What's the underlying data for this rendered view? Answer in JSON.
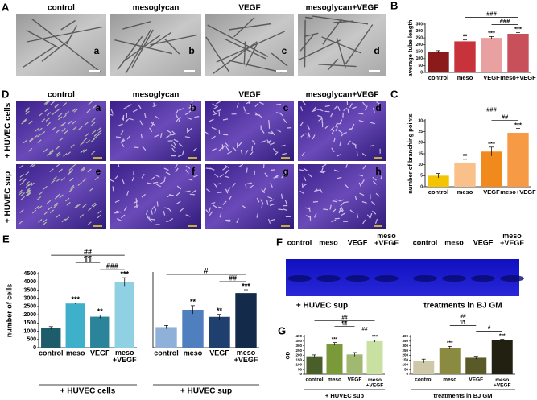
{
  "panels": {
    "A": {
      "label": "A",
      "columns": [
        "control",
        "mesoglycan",
        "VEGF",
        "mesoglycan+VEGF"
      ],
      "letters": [
        "a",
        "b",
        "c",
        "d"
      ]
    },
    "D": {
      "label": "D",
      "columns": [
        "control",
        "mesoglycan",
        "VEGF",
        "mesoglycan+VEGF"
      ],
      "rows": [
        "+ HUVEC cells",
        "+ HUVEC sup"
      ],
      "letters": [
        "a",
        "b",
        "c",
        "d",
        "e",
        "f",
        "g",
        "h"
      ]
    },
    "F": {
      "label": "F",
      "lanes": [
        "control",
        "meso",
        "VEGF",
        [
          "meso",
          "+VEGF"
        ],
        "control",
        "meso",
        "VEGF",
        [
          "meso",
          "+VEGF"
        ]
      ],
      "captions": [
        "+ HUVEC sup",
        "treatments in BJ GM"
      ]
    }
  },
  "chart_data": [
    {
      "type": "bar",
      "panel": "B",
      "ylabel": "average tube length",
      "categories": [
        "control",
        "meso",
        "VEGF",
        "meso+VEGF"
      ],
      "values": [
        150,
        225,
        250,
        280
      ],
      "errors": [
        8,
        10,
        10,
        8
      ],
      "colors": [
        "#8b1a1a",
        "#c8323a",
        "#e8a0a0",
        "#c8505a"
      ],
      "ylim": [
        0,
        350
      ],
      "yticks": [
        0,
        50,
        100,
        150,
        200,
        250,
        300,
        350
      ],
      "significance": [
        null,
        "**",
        "***",
        "***"
      ],
      "brackets": [
        {
          "between": [
            "meso",
            "meso+VEGF"
          ],
          "label": "###"
        },
        {
          "between": [
            "VEGF",
            "meso+VEGF"
          ],
          "label": "###"
        }
      ]
    },
    {
      "type": "bar",
      "panel": "C",
      "ylabel": "number of branching points",
      "categories": [
        "control",
        "meso",
        "VEGF",
        "meso+VEGF"
      ],
      "values": [
        5,
        11,
        16,
        24.5
      ],
      "errors": [
        1,
        1.5,
        2,
        2
      ],
      "colors": [
        "#f5c400",
        "#f9c08a",
        "#f08a1c",
        "#f79a45"
      ],
      "ylim": [
        0,
        30
      ],
      "yticks": [
        0,
        5,
        10,
        15,
        20,
        25,
        30
      ],
      "significance": [
        null,
        "**",
        "***",
        "***"
      ],
      "brackets": [
        {
          "between": [
            "meso",
            "meso+VEGF"
          ],
          "label": "###"
        },
        {
          "between": [
            "VEGF",
            "meso+VEGF"
          ],
          "label": "##"
        }
      ]
    },
    {
      "type": "bar",
      "panel": "E",
      "ylabel": "number of cells",
      "categories": [
        "control",
        "meso",
        "VEGF",
        [
          "meso",
          "+VEGF"
        ]
      ],
      "values": [
        1200,
        2680,
        1880,
        4000
      ],
      "errors": [
        80,
        40,
        100,
        250
      ],
      "colors": [
        "#1d5c6b",
        "#3fb0c9",
        "#2b8499",
        "#8fd0e3"
      ],
      "ylim": [
        0,
        4500
      ],
      "yticks": [
        0,
        500,
        1000,
        1500,
        2000,
        2500,
        3000,
        3500,
        4000,
        4500
      ],
      "significance": [
        null,
        "***",
        "**",
        "***"
      ],
      "brackets": [
        {
          "between": [
            "control",
            [
              "meso",
              "+VEGF"
            ]
          ],
          "label": "##"
        },
        {
          "between": [
            "meso",
            "VEGF"
          ],
          "label": "¶¶"
        },
        {
          "between": [
            "VEGF",
            [
              "meso",
              "+VEGF"
            ]
          ],
          "label": "###"
        }
      ],
      "xlabel": "+ HUVEC cells"
    },
    {
      "type": "bar",
      "categories": [
        "control",
        "meso",
        "VEGF",
        [
          "meso",
          "+VEGF"
        ]
      ],
      "values": [
        1250,
        2300,
        1870,
        3320
      ],
      "errors": [
        100,
        250,
        150,
        200
      ],
      "colors": [
        "#8fb0d8",
        "#4f7fbf",
        "#1f3f6e",
        "#142a4a"
      ],
      "ylim": [
        0,
        4500
      ],
      "significance": [
        null,
        "**",
        "**",
        "***"
      ],
      "brackets": [
        {
          "between": [
            "control",
            [
              "meso",
              "+VEGF"
            ]
          ],
          "label": "#"
        },
        {
          "between": [
            "VEGF",
            [
              "meso",
              "+VEGF"
            ]
          ],
          "label": "##"
        }
      ],
      "xlabel": "+ HUVEC sup"
    },
    {
      "type": "bar",
      "panel": "G",
      "ylabel": "OD",
      "categories": [
        "control",
        "meso",
        "VEGF",
        [
          "meso",
          "+VEGF"
        ]
      ],
      "values": [
        190,
        320,
        210,
        350
      ],
      "errors": [
        15,
        15,
        20,
        10
      ],
      "colors": [
        "#4a5e2a",
        "#7a9a3a",
        "#a0b870",
        "#c8e0a0"
      ],
      "ylim": [
        0,
        400
      ],
      "yticks": [
        0,
        50,
        100,
        150,
        200,
        250,
        300,
        350,
        400
      ],
      "significance": [
        null,
        "***",
        null,
        "***"
      ],
      "brackets": [
        {
          "between": [
            "control",
            [
              "meso",
              "+VEGF"
            ]
          ],
          "label": "##"
        },
        {
          "between": [
            "meso",
            "VEGF"
          ],
          "label": "¶¶"
        },
        {
          "between": [
            "VEGF",
            [
              "meso",
              "+VEGF"
            ]
          ],
          "label": "##"
        }
      ],
      "xlabel": "+ HUVEC sup"
    },
    {
      "type": "bar",
      "categories": [
        "control",
        "meso",
        "VEGF",
        [
          "meso",
          "+VEGF"
        ]
      ],
      "values": [
        140,
        280,
        175,
        360
      ],
      "errors": [
        20,
        15,
        15,
        10
      ],
      "colors": [
        "#cfc8a8",
        "#8a8a40",
        "#5a5a28",
        "#222010"
      ],
      "ylim": [
        0,
        400
      ],
      "yticks": [
        0,
        50,
        100,
        150,
        200,
        250,
        300,
        350,
        400
      ],
      "significance": [
        null,
        "***",
        null,
        "***"
      ],
      "brackets": [
        {
          "between": [
            "control",
            [
              "meso",
              "+VEGF"
            ]
          ],
          "label": "##"
        },
        {
          "between": [
            "meso",
            "VEGF"
          ],
          "label": "¶¶"
        },
        {
          "between": [
            "VEGF",
            [
              "meso",
              "+VEGF"
            ]
          ],
          "label": "#"
        }
      ],
      "xlabel": "treatments in BJ GM"
    }
  ]
}
